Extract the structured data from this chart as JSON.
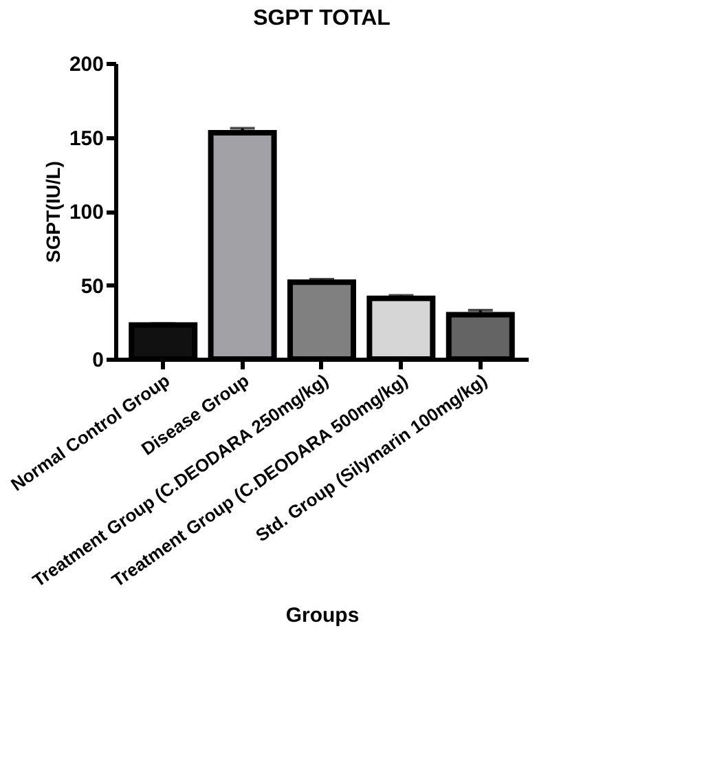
{
  "chart_data": {
    "type": "bar",
    "title": "SGPT TOTAL",
    "xlabel": "Groups",
    "ylabel": "SGPT(IU/L)",
    "categories": [
      "Normal Control Group",
      "Disease Group",
      "Treatment Group (C.DEODARA 250mg/kg)",
      "Treatment Group (C.DEODARA 500mg/kg)",
      "Std. Group (Silymarin 100mg/kg)"
    ],
    "values": [
      23,
      153,
      52,
      41,
      30
    ],
    "colors": [
      "#111111",
      "#a1a1a6",
      "#808080",
      "#d6d6d6",
      "#646464"
    ],
    "errors": [
      [
        23,
        24
      ],
      [
        153,
        156
      ],
      [
        52,
        54
      ],
      [
        41,
        43
      ],
      [
        30,
        33
      ]
    ],
    "ylim": [
      0,
      200
    ],
    "yticks": [
      0,
      50,
      100,
      150,
      200
    ],
    "grid": false
  }
}
